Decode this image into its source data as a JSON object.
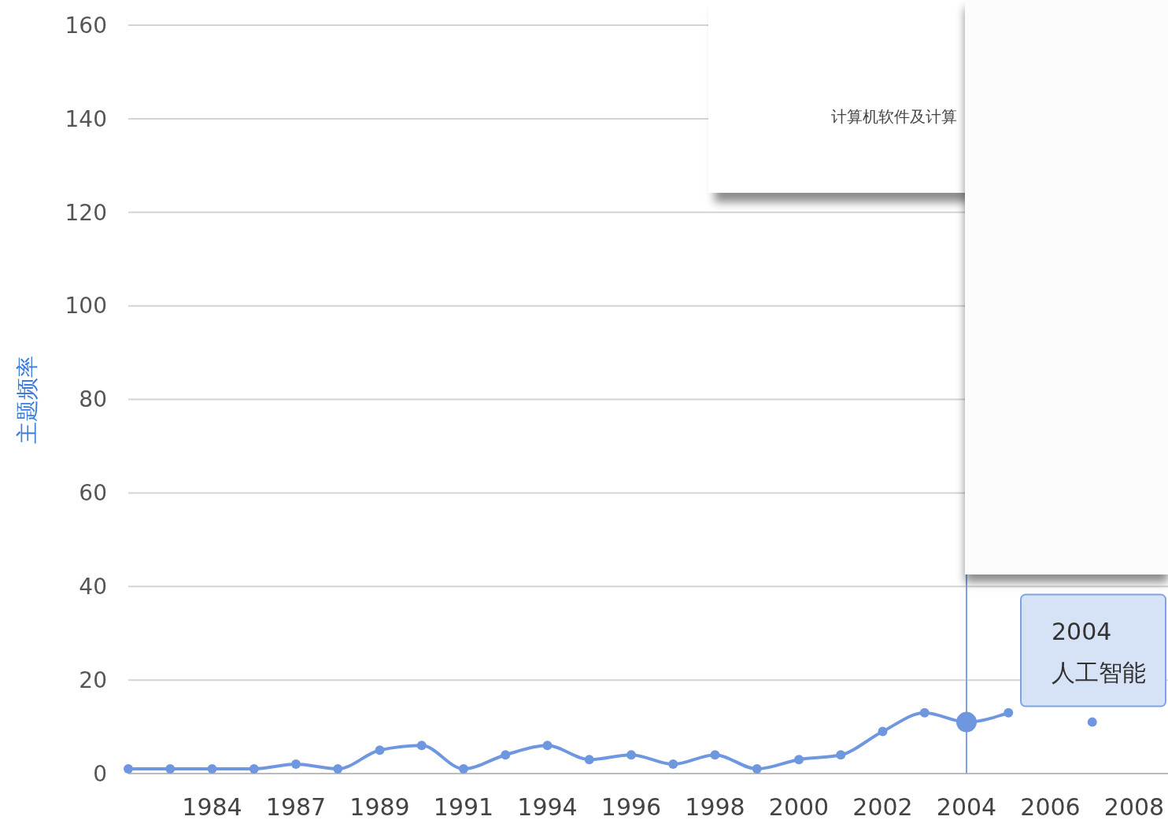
{
  "chart_data": {
    "type": "line",
    "ylabel": "主题频率",
    "categories": [
      null,
      null,
      "1984",
      null,
      "1987",
      null,
      "1989",
      null,
      "1991",
      null,
      "1994",
      null,
      "1996",
      null,
      "1998",
      null,
      "2000",
      null,
      "2002",
      null,
      "2004",
      null,
      "2006",
      null,
      "2008"
    ],
    "series": [
      {
        "color": "#6f97e0",
        "values": [
          1,
          1,
          1,
          1,
          2,
          1,
          5,
          6,
          1,
          4,
          6,
          3,
          4,
          2,
          4,
          1,
          3,
          4,
          9,
          13,
          11,
          13,
          null,
          11,
          null
        ]
      }
    ],
    "ylim": [
      0,
      160
    ],
    "yticks": [
      0,
      20,
      40,
      60,
      80,
      100,
      120,
      140,
      160
    ],
    "grid": "y",
    "marker": "circle",
    "line_style": "solid",
    "ref_lines": [
      {
        "axis": "x",
        "value": "2004",
        "color": "#7da2e6"
      }
    ],
    "annotations": [
      "2004\n人工智能",
      "计算机软件及计算"
    ]
  }
}
